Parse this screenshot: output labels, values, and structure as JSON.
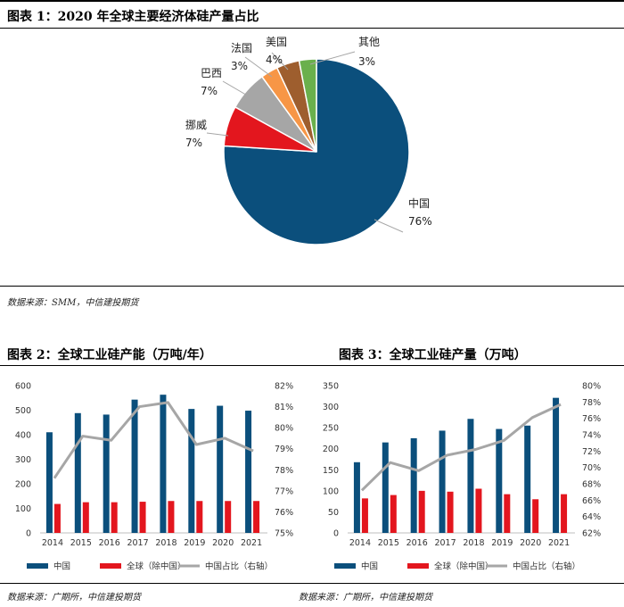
{
  "figure1": {
    "title": "图表 1：2020 年全球主要经济体硅产量占比",
    "source": "数据来源：SMM，中信建投期货"
  },
  "figure2": {
    "title": "图表 2：全球工业硅产能（万吨/年）",
    "source": "数据来源：广期所，中信建投期货"
  },
  "figure3": {
    "title": "图表 3：全球工业硅产量（万吨）",
    "source": "数据来源：广期所，中信建投期货"
  },
  "colors": {
    "china": "#0B4F7C",
    "global_ex_china": "#E3161E",
    "share_line": "#A6A6A6",
    "norway": "#E3161E",
    "brazil": "#A6A6A6",
    "france": "#F79646",
    "usa": "#9E5E2E",
    "other": "#6AB04C"
  },
  "chart_data": [
    {
      "type": "pie",
      "slices": [
        {
          "name": "中国",
          "label": "76%",
          "value": 76,
          "color": "#0B4F7C"
        },
        {
          "name": "挪威",
          "label": "7%",
          "value": 7,
          "color": "#E3161E"
        },
        {
          "name": "巴西",
          "label": "7%",
          "value": 7,
          "color": "#A6A6A6"
        },
        {
          "name": "法国",
          "label": "3%",
          "value": 3,
          "color": "#F79646"
        },
        {
          "name": "美国",
          "label": "4%",
          "value": 4,
          "color": "#9E5E2E"
        },
        {
          "name": "其他",
          "label": "3%",
          "value": 3,
          "color": "#6AB04C"
        }
      ]
    },
    {
      "type": "bar",
      "categories": [
        "2014",
        "2015",
        "2016",
        "2017",
        "2018",
        "2019",
        "2020",
        "2021"
      ],
      "series": [
        {
          "name": "中国",
          "values": [
            410,
            488,
            482,
            543,
            563,
            505,
            518,
            498
          ],
          "color": "#0B4F7C"
        },
        {
          "name": "全球（除中国）",
          "values": [
            118,
            125,
            125,
            127,
            130,
            130,
            130,
            130
          ],
          "color": "#E3161E"
        },
        {
          "name": "中国占比（右轴）",
          "axis": "right",
          "line": true,
          "values": [
            77.6,
            79.6,
            79.4,
            81.0,
            81.2,
            79.2,
            79.5,
            78.9
          ],
          "color": "#A6A6A6"
        }
      ],
      "ylim": [
        0,
        600
      ],
      "yticks": [
        "0",
        "100",
        "200",
        "300",
        "400",
        "500",
        "600"
      ],
      "y2lim": [
        75,
        82
      ],
      "y2ticks": [
        "75%",
        "76%",
        "77%",
        "78%",
        "79%",
        "80%",
        "81%",
        "82%"
      ],
      "legend": "bottom"
    },
    {
      "type": "bar",
      "categories": [
        "2014",
        "2015",
        "2016",
        "2017",
        "2018",
        "2019",
        "2020",
        "2021"
      ],
      "series": [
        {
          "name": "中国",
          "values": [
            168,
            215,
            225,
            243,
            271,
            247,
            255,
            321
          ],
          "color": "#0B4F7C"
        },
        {
          "name": "全球（除中国）",
          "values": [
            82,
            90,
            100,
            98,
            105,
            92,
            80,
            92
          ],
          "color": "#E3161E"
        },
        {
          "name": "中国占比（右轴）",
          "axis": "right",
          "line": true,
          "values": [
            67.2,
            70.6,
            69.6,
            71.5,
            72.2,
            73.3,
            76.1,
            77.7
          ],
          "color": "#A6A6A6"
        }
      ],
      "ylim": [
        0,
        350
      ],
      "yticks": [
        "0",
        "50",
        "100",
        "150",
        "200",
        "250",
        "300",
        "350"
      ],
      "y2lim": [
        62,
        80
      ],
      "y2ticks": [
        "62%",
        "64%",
        "66%",
        "68%",
        "70%",
        "72%",
        "74%",
        "76%",
        "78%",
        "80%"
      ],
      "legend": "bottom"
    }
  ]
}
